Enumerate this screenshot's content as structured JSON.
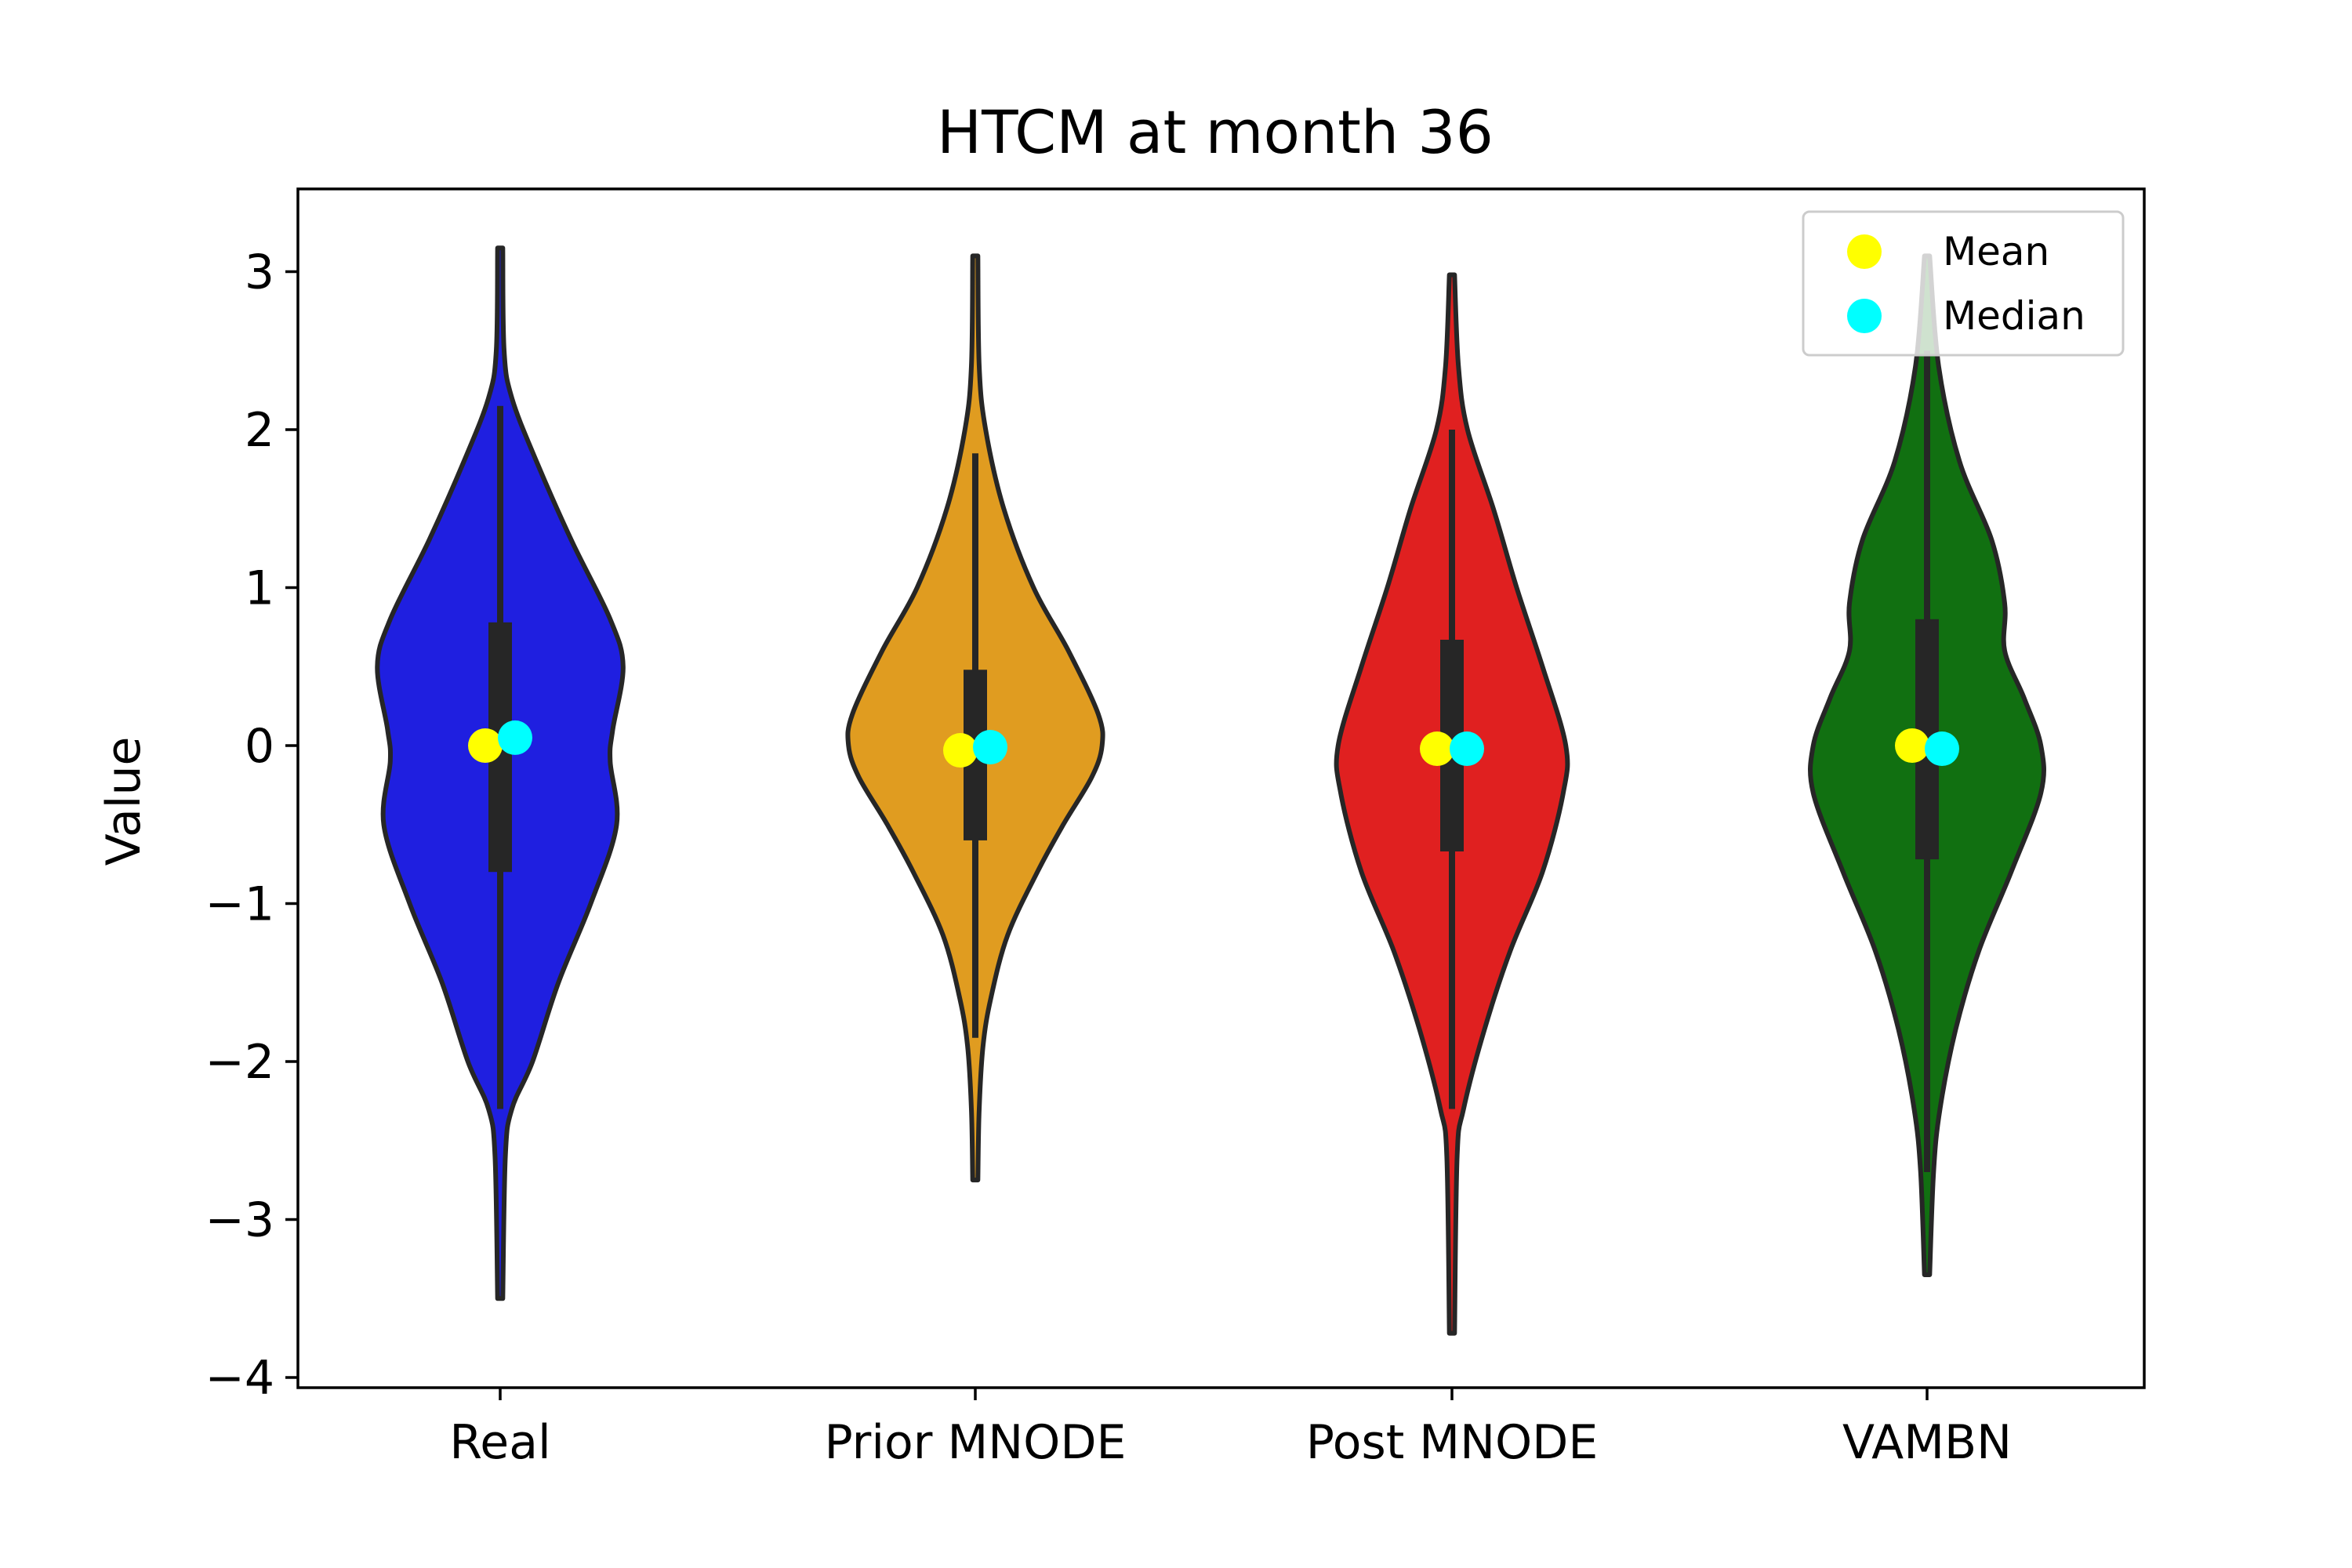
{
  "chart_data": {
    "type": "violin",
    "title": "HTCM at month 36",
    "xlabel": "",
    "ylabel": "Value",
    "ylim": [
      -4.15,
      3.5
    ],
    "yticks": [
      3,
      2,
      1,
      0,
      -1,
      -2,
      -3,
      -4
    ],
    "ytick_labels": [
      "3",
      "2",
      "1",
      "0",
      "−1",
      "−2",
      "−3",
      "−4"
    ],
    "grid": false,
    "legend": {
      "placement": "top-right",
      "entries": [
        {
          "label": "Mean",
          "color": "#ffff00"
        },
        {
          "label": "Median",
          "color": "#00ffff"
        }
      ]
    },
    "categories": [
      "Real",
      "Prior MNODE",
      "Post MNODE",
      "VAMBN"
    ],
    "series": [
      {
        "category": "Real",
        "color": "#1f1fe0",
        "min": -3.5,
        "max": 3.15,
        "q1": -0.8,
        "q3": 0.78,
        "whisker_low": -2.3,
        "whisker_high": 2.15,
        "mean": 0.0,
        "median": 0.05,
        "density": [
          [
            3.15,
            0.02
          ],
          [
            2.5,
            0.03
          ],
          [
            2.2,
            0.09
          ],
          [
            1.8,
            0.28
          ],
          [
            1.3,
            0.55
          ],
          [
            0.8,
            0.85
          ],
          [
            0.5,
            0.95
          ],
          [
            0.1,
            0.87
          ],
          [
            -0.1,
            0.85
          ],
          [
            -0.5,
            0.9
          ],
          [
            -1.0,
            0.7
          ],
          [
            -1.5,
            0.45
          ],
          [
            -2.0,
            0.25
          ],
          [
            -2.3,
            0.09
          ],
          [
            -2.6,
            0.04
          ],
          [
            -3.5,
            0.02
          ]
        ]
      },
      {
        "category": "Prior MNODE",
        "color": "#e09c20",
        "min": -2.75,
        "max": 3.1,
        "q1": -0.6,
        "q3": 0.48,
        "whisker_low": -1.85,
        "whisker_high": 1.85,
        "mean": -0.03,
        "median": -0.01,
        "density": [
          [
            3.1,
            0.02
          ],
          [
            2.4,
            0.03
          ],
          [
            2.0,
            0.08
          ],
          [
            1.5,
            0.22
          ],
          [
            1.0,
            0.45
          ],
          [
            0.6,
            0.72
          ],
          [
            0.2,
            0.95
          ],
          [
            0.0,
            0.98
          ],
          [
            -0.2,
            0.9
          ],
          [
            -0.5,
            0.68
          ],
          [
            -0.8,
            0.48
          ],
          [
            -1.2,
            0.25
          ],
          [
            -1.6,
            0.12
          ],
          [
            -1.9,
            0.06
          ],
          [
            -2.3,
            0.03
          ],
          [
            -2.75,
            0.02
          ]
        ]
      },
      {
        "category": "Post MNODE",
        "color": "#e02020",
        "min": -3.72,
        "max": 2.98,
        "q1": -0.67,
        "q3": 0.67,
        "whisker_low": -2.3,
        "whisker_high": 2.0,
        "mean": -0.02,
        "median": -0.02,
        "density": [
          [
            2.98,
            0.02
          ],
          [
            2.4,
            0.05
          ],
          [
            2.0,
            0.12
          ],
          [
            1.5,
            0.32
          ],
          [
            1.0,
            0.5
          ],
          [
            0.5,
            0.7
          ],
          [
            0.0,
            0.88
          ],
          [
            -0.3,
            0.86
          ],
          [
            -0.8,
            0.7
          ],
          [
            -1.3,
            0.45
          ],
          [
            -1.8,
            0.25
          ],
          [
            -2.3,
            0.09
          ],
          [
            -2.6,
            0.04
          ],
          [
            -3.72,
            0.02
          ]
        ]
      },
      {
        "category": "VAMBN",
        "color": "#117011",
        "min": -3.35,
        "max": 3.1,
        "q1": -0.72,
        "q3": 0.8,
        "whisker_low": -2.7,
        "whisker_high": 2.5,
        "mean": 0.0,
        "median": -0.02,
        "density": [
          [
            3.1,
            0.02
          ],
          [
            2.4,
            0.09
          ],
          [
            1.8,
            0.25
          ],
          [
            1.3,
            0.5
          ],
          [
            0.9,
            0.6
          ],
          [
            0.6,
            0.6
          ],
          [
            0.3,
            0.75
          ],
          [
            0.0,
            0.88
          ],
          [
            -0.3,
            0.88
          ],
          [
            -0.8,
            0.65
          ],
          [
            -1.3,
            0.4
          ],
          [
            -1.8,
            0.22
          ],
          [
            -2.3,
            0.1
          ],
          [
            -2.7,
            0.05
          ],
          [
            -3.35,
            0.02
          ]
        ]
      }
    ]
  }
}
